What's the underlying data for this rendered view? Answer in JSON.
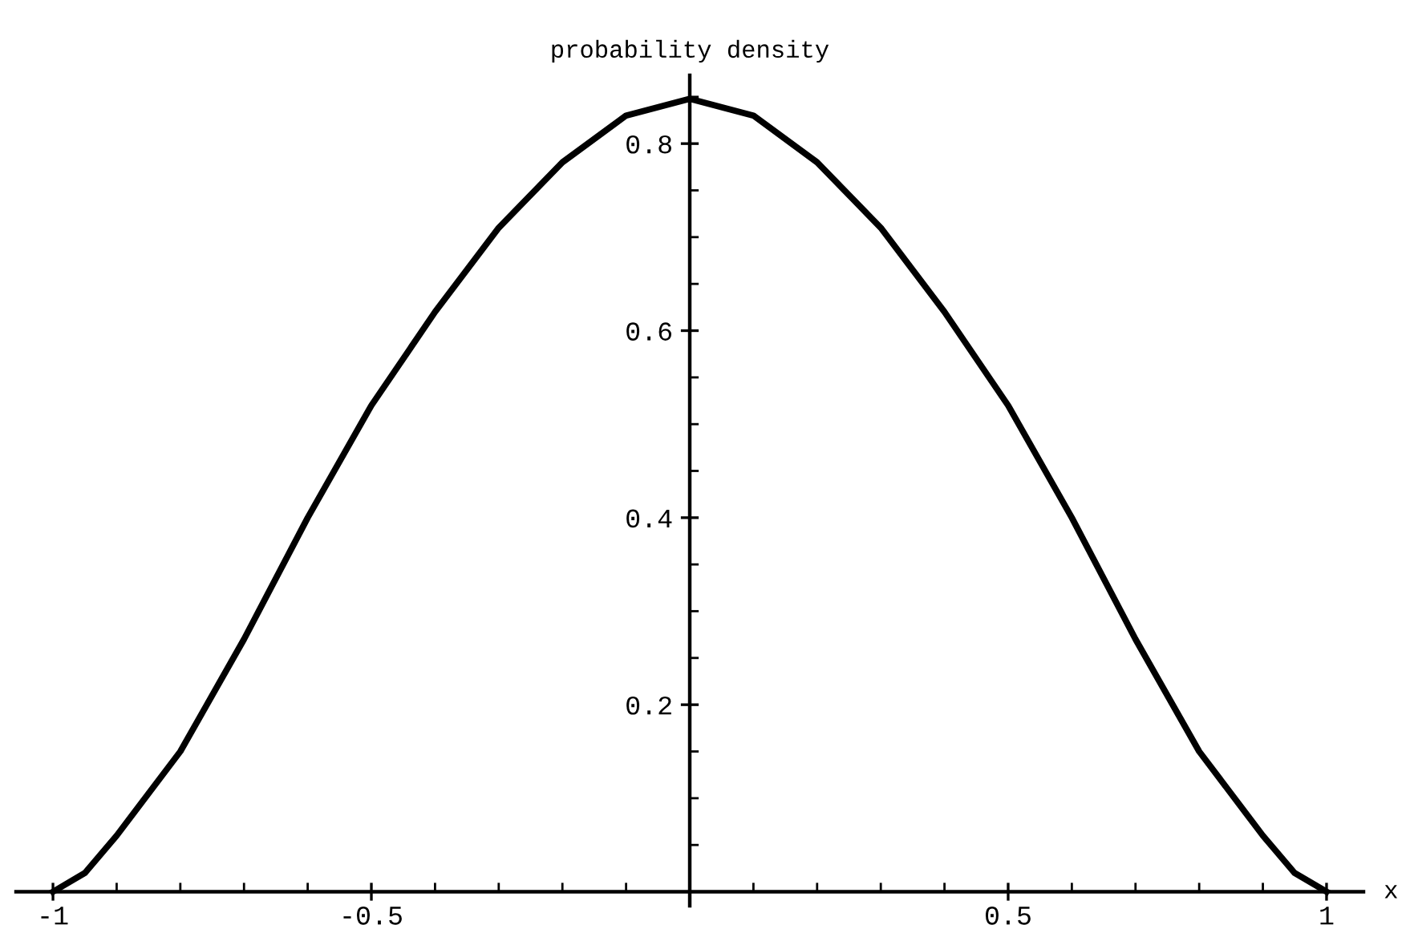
{
  "chart_data": {
    "type": "line",
    "title": "probability density",
    "xlabel": "x",
    "x": [
      -1,
      -0.95,
      -0.9,
      -0.8,
      -0.7,
      -0.6,
      -0.5,
      -0.4,
      -0.3,
      -0.2,
      -0.1,
      0,
      0.1,
      0.2,
      0.3,
      0.4,
      0.5,
      0.6,
      0.7,
      0.8,
      0.9,
      0.95,
      1
    ],
    "series": [
      {
        "color": "#000000",
        "values": [
          0,
          0.02,
          0.06,
          0.15,
          0.27,
          0.4,
          0.52,
          0.62,
          0.71,
          0.78,
          0.83,
          0.848,
          0.83,
          0.78,
          0.71,
          0.62,
          0.52,
          0.4,
          0.27,
          0.15,
          0.06,
          0.02,
          0
        ]
      }
    ],
    "xlim": [
      -1.058,
      1.058
    ],
    "ylim": [
      -0.015,
      0.873
    ],
    "xticks": [
      {
        "value": -1,
        "label": "-1"
      },
      {
        "value": -0.5,
        "label": "-0.5"
      },
      {
        "value": 0.5,
        "label": "0.5"
      },
      {
        "value": 1,
        "label": "1"
      },
      {
        "value": -0.9,
        "label": null
      },
      {
        "value": -0.8,
        "label": null
      },
      {
        "value": -0.7,
        "label": null
      },
      {
        "value": -0.6,
        "label": null
      },
      {
        "value": -0.4,
        "label": null
      },
      {
        "value": -0.3,
        "label": null
      },
      {
        "value": -0.2,
        "label": null
      },
      {
        "value": -0.1,
        "label": null
      },
      {
        "value": 0.1,
        "label": null
      },
      {
        "value": 0.2,
        "label": null
      },
      {
        "value": 0.3,
        "label": null
      },
      {
        "value": 0.4,
        "label": null
      },
      {
        "value": 0.6,
        "label": null
      },
      {
        "value": 0.7,
        "label": null
      },
      {
        "value": 0.8,
        "label": null
      },
      {
        "value": 0.9,
        "label": null
      }
    ],
    "yticks": [
      0.2,
      0.4,
      0.6,
      0.8,
      {
        "value": 0.05,
        "label": null
      },
      {
        "value": 0.1,
        "label": null
      },
      {
        "value": 0.15,
        "label": null
      },
      {
        "value": 0.25,
        "label": null
      },
      {
        "value": 0.3,
        "label": null
      },
      {
        "value": 0.35,
        "label": null
      },
      {
        "value": 0.45,
        "label": null
      },
      {
        "value": 0.5,
        "label": null
      },
      {
        "value": 0.55,
        "label": null
      },
      {
        "value": 0.65,
        "label": null
      },
      {
        "value": 0.7,
        "label": null
      },
      {
        "value": 0.75,
        "label": null
      },
      {
        "value": 0.85,
        "label": null
      }
    ],
    "grid": false,
    "legend": false,
    "marker": "none",
    "line_style": "solid"
  }
}
